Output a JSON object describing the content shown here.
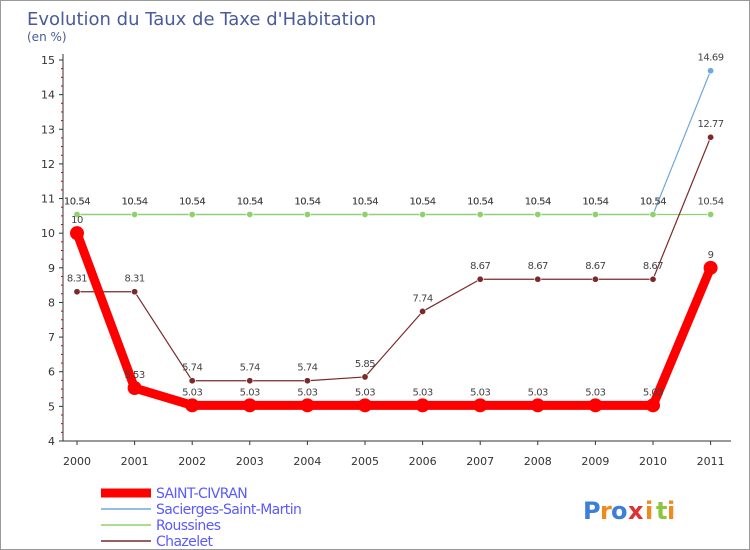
{
  "chart_data": {
    "type": "line",
    "title": "Evolution du Taux de Taxe d'Habitation",
    "subtitle": "(en %)",
    "categories": [
      "2000",
      "2001",
      "2002",
      "2003",
      "2004",
      "2005",
      "2006",
      "2007",
      "2008",
      "2009",
      "2010",
      "2011"
    ],
    "ylim": [
      4,
      15
    ],
    "yticks": [
      "4",
      "5",
      "6",
      "7",
      "8",
      "9",
      "10",
      "11",
      "12",
      "13",
      "14",
      "15"
    ],
    "series": [
      {
        "name": "SAINT-CIVRAN",
        "color": "#ff0000",
        "values": [
          10,
          5.53,
          5.03,
          5.03,
          5.03,
          5.03,
          5.03,
          5.03,
          5.03,
          5.03,
          5.03,
          9
        ],
        "labels": [
          "10",
          "5.53",
          "5.03",
          "5.03",
          "5.03",
          "5.03",
          "5.03",
          "5.03",
          "5.03",
          "5.03",
          "5.03",
          "9"
        ]
      },
      {
        "name": "Sacierges-Saint-Martin",
        "color": "#6fa8dc",
        "values": [
          10.54,
          10.54,
          10.54,
          10.54,
          10.54,
          10.54,
          10.54,
          10.54,
          10.54,
          10.54,
          10.54,
          14.69
        ],
        "labels": [
          "10.54",
          "10.54",
          "10.54",
          "10.54",
          "10.54",
          "10.54",
          "10.54",
          "10.54",
          "10.54",
          "10.54",
          "10.54",
          "14.69"
        ]
      },
      {
        "name": "Roussines",
        "color": "#8fd16a",
        "values": [
          10.54,
          10.54,
          10.54,
          10.54,
          10.54,
          10.54,
          10.54,
          10.54,
          10.54,
          10.54,
          10.54,
          10.54
        ],
        "labels": [
          "10.54",
          "10.54",
          "10.54",
          "10.54",
          "10.54",
          "10.54",
          "10.54",
          "10.54",
          "10.54",
          "10.54",
          "10.54",
          "10.54"
        ]
      },
      {
        "name": "Chazelet",
        "color": "#7a2a2a",
        "values": [
          8.31,
          8.31,
          5.74,
          5.74,
          5.74,
          5.85,
          7.74,
          8.67,
          8.67,
          8.67,
          8.67,
          12.77
        ],
        "labels": [
          "8.31",
          "8.31",
          "5.74",
          "5.74",
          "5.74",
          "5.85",
          "7.74",
          "8.67",
          "8.67",
          "8.67",
          "8.67",
          "12.77"
        ]
      }
    ],
    "legend_position": "bottom-left",
    "grid": false
  },
  "brand": {
    "letters": [
      "P",
      "r",
      "o",
      "x",
      "i",
      "t",
      "i"
    ],
    "colors": [
      "#3b7fd9",
      "#f08a1c",
      "#3b7fd9",
      "#e03131",
      "#f08a1c",
      "#8cc63f",
      "#f08a1c"
    ]
  },
  "colors": {
    "axis": "#333333",
    "tick_red": "#cc0000",
    "title": "#4a5a9a",
    "legend_text": "#5a5aff"
  }
}
